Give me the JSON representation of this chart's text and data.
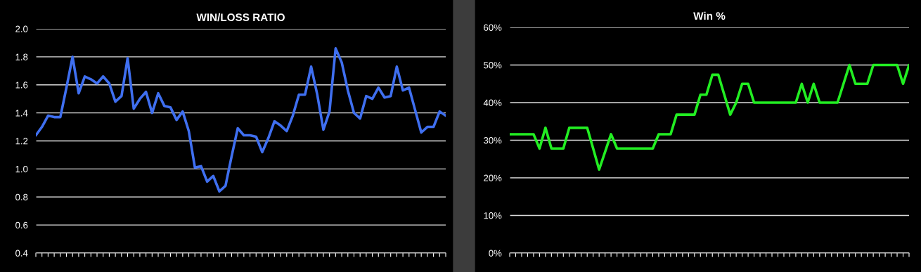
{
  "chart_data": [
    {
      "type": "line",
      "title": "WIN/LOSS RATIO",
      "categories": [
        null,
        null,
        null,
        null,
        null,
        null,
        null,
        null,
        null,
        null,
        null,
        null,
        null,
        null,
        null,
        null,
        null,
        null,
        null,
        null,
        null,
        null,
        null,
        null,
        null,
        null,
        null,
        null,
        null,
        null,
        null,
        null,
        null,
        null,
        null,
        null,
        null,
        null,
        null,
        null,
        null,
        null,
        null,
        null,
        null,
        null,
        null,
        null,
        null,
        null,
        null,
        null,
        null,
        null,
        null,
        null,
        null,
        null,
        null,
        null,
        null,
        null,
        null,
        null,
        null,
        null,
        null,
        null
      ],
      "series": [
        {
          "color": "#3f6ff0",
          "values": [
            1.24,
            1.3,
            1.38,
            1.37,
            1.37,
            1.58,
            1.8,
            1.54,
            1.66,
            1.64,
            1.61,
            1.66,
            1.61,
            1.48,
            1.52,
            1.79,
            1.43,
            1.5,
            1.55,
            1.4,
            1.54,
            1.45,
            1.44,
            1.35,
            1.41,
            1.27,
            1.01,
            1.02,
            0.91,
            0.95,
            0.84,
            0.88,
            1.09,
            1.29,
            1.24,
            1.24,
            1.23,
            1.12,
            1.22,
            1.34,
            1.31,
            1.27,
            1.38,
            1.53,
            1.53,
            1.73,
            1.53,
            1.28,
            1.41,
            1.86,
            1.76,
            1.56,
            1.4,
            1.36,
            1.52,
            1.5,
            1.58,
            1.51,
            1.52,
            1.73,
            1.56,
            1.58,
            1.42,
            1.26,
            1.3,
            1.3,
            1.41,
            1.38
          ]
        }
      ],
      "ylim": [
        0.4,
        2.0
      ],
      "yticks": [
        {
          "value": 0.4,
          "label": "0.4"
        },
        {
          "value": 0.6,
          "label": "0.6"
        },
        {
          "value": 0.8,
          "label": "0.8"
        },
        {
          "value": 1.0,
          "label": "1.0"
        },
        {
          "value": 1.2,
          "label": "1.2"
        },
        {
          "value": 1.4,
          "label": "1.4"
        },
        {
          "value": 1.6,
          "label": "1.6"
        },
        {
          "value": 1.8,
          "label": "1.8"
        },
        {
          "value": 2.0,
          "label": "2.0"
        }
      ],
      "grid": "y",
      "tick_labels": "y",
      "marker": "none",
      "line_style": "solid"
    },
    {
      "type": "line",
      "title": "Win %",
      "categories": [
        null,
        null,
        null,
        null,
        null,
        null,
        null,
        null,
        null,
        null,
        null,
        null,
        null,
        null,
        null,
        null,
        null,
        null,
        null,
        null,
        null,
        null,
        null,
        null,
        null,
        null,
        null,
        null,
        null,
        null,
        null,
        null,
        null,
        null,
        null,
        null,
        null,
        null,
        null,
        null,
        null,
        null,
        null,
        null,
        null,
        null,
        null,
        null,
        null,
        null,
        null,
        null,
        null,
        null,
        null,
        null,
        null,
        null,
        null,
        null,
        null,
        null,
        null,
        null,
        null,
        null,
        null,
        null
      ],
      "series": [
        {
          "color": "#22ee22",
          "values": [
            31.6,
            31.6,
            31.6,
            31.6,
            31.6,
            27.8,
            33.3,
            27.8,
            27.8,
            27.8,
            33.3,
            33.3,
            33.3,
            33.3,
            27.8,
            22.2,
            26.9,
            31.6,
            27.8,
            27.8,
            27.8,
            27.8,
            27.8,
            27.8,
            27.8,
            31.6,
            31.6,
            31.6,
            36.8,
            36.8,
            36.8,
            36.8,
            42.1,
            42.1,
            47.4,
            47.4,
            42.1,
            36.8,
            40,
            45,
            45,
            40,
            40,
            40,
            40,
            40,
            40,
            40,
            40,
            45,
            40,
            45,
            40,
            40,
            40,
            40,
            45,
            50,
            45,
            45,
            45,
            50,
            50,
            50,
            50,
            50,
            45,
            50
          ]
        }
      ],
      "ylim": [
        0,
        60
      ],
      "yticks": [
        {
          "value": 0,
          "label": "0%"
        },
        {
          "value": 10,
          "label": "10%"
        },
        {
          "value": 20,
          "label": "20%"
        },
        {
          "value": 30,
          "label": "30%"
        },
        {
          "value": 40,
          "label": "40%"
        },
        {
          "value": 50,
          "label": "50%"
        },
        {
          "value": 60,
          "label": "60%"
        }
      ],
      "grid": "y",
      "tick_labels": "y",
      "marker": "none",
      "line_style": "solid"
    }
  ]
}
